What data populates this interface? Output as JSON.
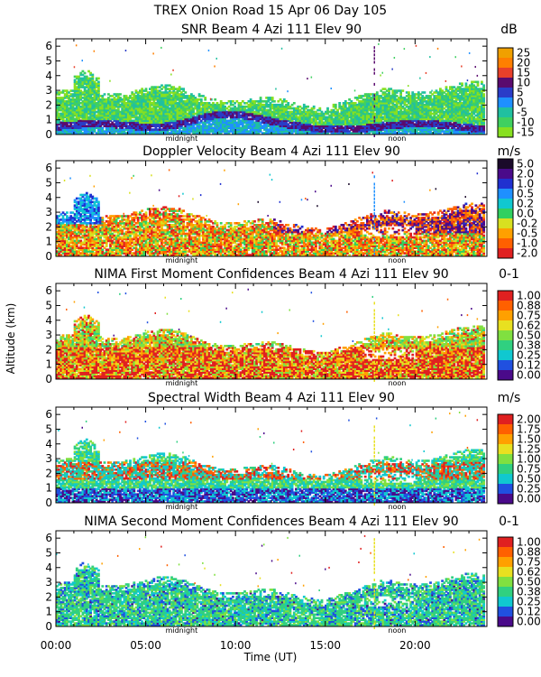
{
  "figure": {
    "main_title": "TREX Onion Road  15 Apr 06 Day 105",
    "ylabel": "Altitude (km)",
    "xlabel": "Time (UT)",
    "x_ticks": [
      "00:00",
      "05:00",
      "10:00",
      "15:00",
      "20:00"
    ],
    "y_ticks": [
      "0",
      "1",
      "2",
      "3",
      "4",
      "5",
      "6"
    ],
    "midnight_label": "midnight",
    "noon_label": "noon"
  },
  "chart_data": [
    {
      "type": "heatmap",
      "title": "SNR Beam 4 Azi 111 Elev 90",
      "unit": "dB",
      "colorbar_ticks": [
        "25",
        "20",
        "15",
        "10",
        "5",
        "0",
        "-5",
        "-10",
        "-15"
      ],
      "colors": [
        "#f0a000",
        "#ff7f00",
        "#e8402a",
        "#5a0a6e",
        "#2a3cc8",
        "#1e90ff",
        "#20c0a0",
        "#40d060",
        "#88e020"
      ],
      "xlim": [
        0,
        24
      ],
      "ylim": [
        0,
        6.5
      ],
      "pattern": "snr"
    },
    {
      "type": "heatmap",
      "title": "Doppler Velocity Beam 4 Azi 111 Elev 90",
      "unit": "m/s",
      "colorbar_ticks": [
        "5.0",
        "2.0",
        "1.0",
        "0.5",
        "0.2",
        "0.0",
        "-0.2",
        "-0.5",
        "-1.0",
        "-2.0"
      ],
      "colors": [
        "#1a0a2a",
        "#4a0a8a",
        "#2030d0",
        "#1e90ff",
        "#10c8d0",
        "#30d060",
        "#d8e020",
        "#ffa000",
        "#ff6000",
        "#e02020"
      ],
      "xlim": [
        0,
        24
      ],
      "ylim": [
        0,
        6.5
      ],
      "pattern": "doppler"
    },
    {
      "type": "heatmap",
      "title": "NIMA First Moment Confidences Beam 4 Azi 111 Elev 90",
      "unit": "0-1",
      "colorbar_ticks": [
        "1.00",
        "0.88",
        "0.75",
        "0.62",
        "0.50",
        "0.38",
        "0.25",
        "0.12",
        "0.00"
      ],
      "colors": [
        "#e02020",
        "#ff6000",
        "#ffa000",
        "#e8e020",
        "#80e040",
        "#30d080",
        "#10c8d0",
        "#2050e0",
        "#4a0a8a"
      ],
      "xlim": [
        0,
        24
      ],
      "ylim": [
        0,
        6.5
      ],
      "pattern": "conf1"
    },
    {
      "type": "heatmap",
      "title": "Spectral Width Beam 4 Azi 111 Elev 90",
      "unit": "m/s",
      "colorbar_ticks": [
        "2.00",
        "1.75",
        "1.50",
        "1.25",
        "1.00",
        "0.75",
        "0.50",
        "0.25",
        "0.00"
      ],
      "colors": [
        "#e02020",
        "#ff6000",
        "#ffa000",
        "#e8e020",
        "#80e040",
        "#30d080",
        "#10c8d0",
        "#2050e0",
        "#4a0a8a"
      ],
      "xlim": [
        0,
        24
      ],
      "ylim": [
        0,
        6.5
      ],
      "pattern": "width"
    },
    {
      "type": "heatmap",
      "title": "NIMA Second Moment Confidences Beam 4 Azi 111 Elev 90",
      "unit": "0-1",
      "colorbar_ticks": [
        "1.00",
        "0.88",
        "0.75",
        "0.62",
        "0.50",
        "0.38",
        "0.25",
        "0.12",
        "0.00"
      ],
      "colors": [
        "#e02020",
        "#ff6000",
        "#ffa000",
        "#e8e020",
        "#80e040",
        "#30d080",
        "#10c8d0",
        "#2050e0",
        "#4a0a8a"
      ],
      "xlim": [
        0,
        24
      ],
      "ylim": [
        0,
        6.5
      ],
      "pattern": "conf2"
    }
  ]
}
